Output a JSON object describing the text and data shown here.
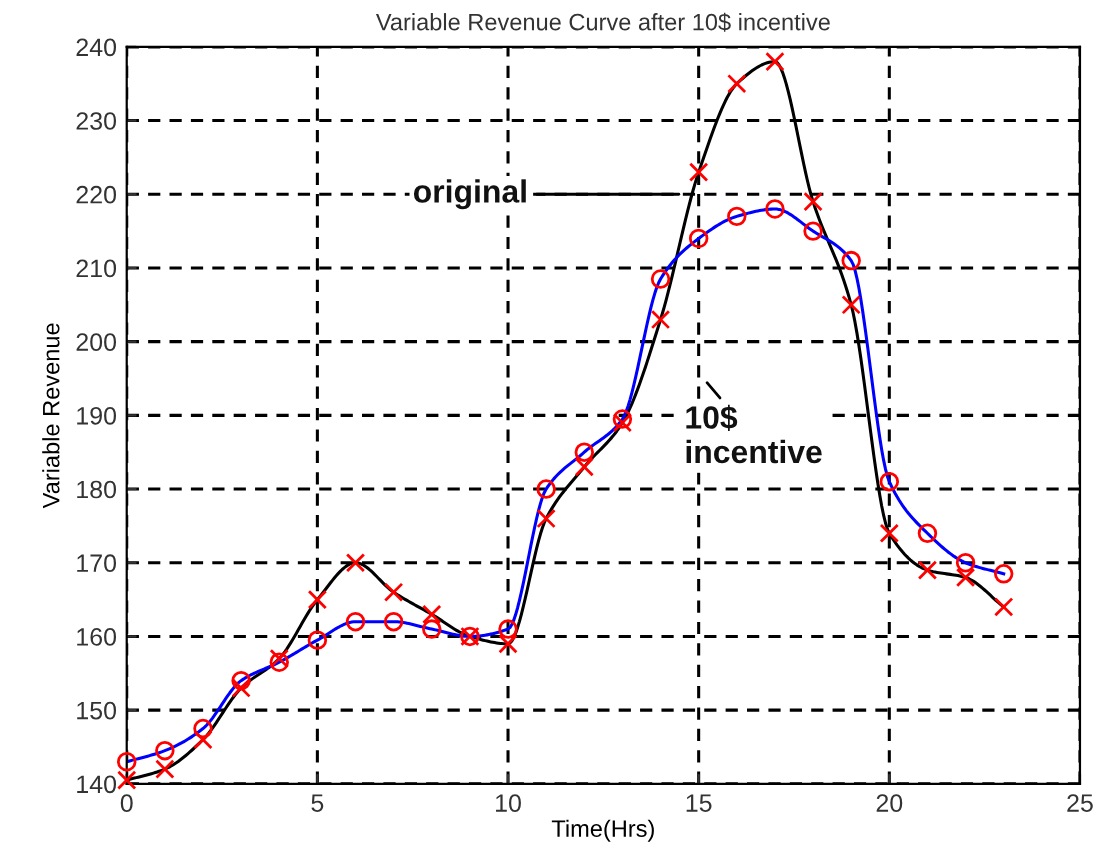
{
  "chart_data": {
    "type": "line",
    "title": "Variable Revenue Curve after 10$ incentive",
    "xlabel": "Time(Hrs)",
    "ylabel": "Variable Revenue",
    "x": [
      0,
      1,
      2,
      3,
      4,
      5,
      6,
      7,
      8,
      9,
      10,
      11,
      12,
      13,
      14,
      15,
      16,
      17,
      18,
      19,
      20,
      21,
      22,
      23
    ],
    "series": [
      {
        "color": "#000000",
        "marker": "none",
        "values": [
          140.5,
          142,
          146,
          153,
          157,
          165,
          170,
          166,
          163,
          160,
          159,
          176,
          183,
          189,
          203,
          223,
          235,
          238,
          219,
          205,
          174,
          169,
          168,
          164
        ]
      },
      {
        "color": "#0000ff",
        "marker": "none",
        "values": [
          143,
          144.5,
          147.5,
          154,
          156.5,
          159.5,
          162,
          162,
          161,
          160,
          161,
          180,
          185,
          189.5,
          208.5,
          214,
          217,
          218,
          215,
          211,
          181,
          174,
          170,
          168.5
        ]
      },
      {
        "type": "scatter",
        "color": "#ff0000",
        "marker": "cross",
        "values": [
          140.5,
          142,
          146,
          153,
          157,
          165,
          170,
          166,
          163,
          160,
          159,
          176,
          183,
          189,
          203,
          223,
          235,
          238,
          219,
          205,
          174,
          169,
          168,
          164
        ]
      },
      {
        "type": "scatter",
        "color": "#ff0000",
        "marker": "circle",
        "values": [
          143,
          144.5,
          147.5,
          154,
          156.5,
          159.5,
          162,
          162,
          161,
          160,
          161,
          180,
          185,
          189.5,
          208.5,
          214,
          217,
          218,
          215,
          211,
          181,
          174,
          170,
          168.5
        ]
      }
    ],
    "annotations": [
      "original",
      "10$\nincentive"
    ],
    "xlim": [
      0,
      25
    ],
    "ylim": [
      140,
      240
    ],
    "xticks": [
      0,
      5,
      10,
      15,
      20,
      25
    ],
    "yticks": [
      140,
      150,
      160,
      170,
      180,
      190,
      200,
      210,
      220,
      230,
      240
    ],
    "grid": true,
    "line_style": "solid",
    "legend": false
  }
}
